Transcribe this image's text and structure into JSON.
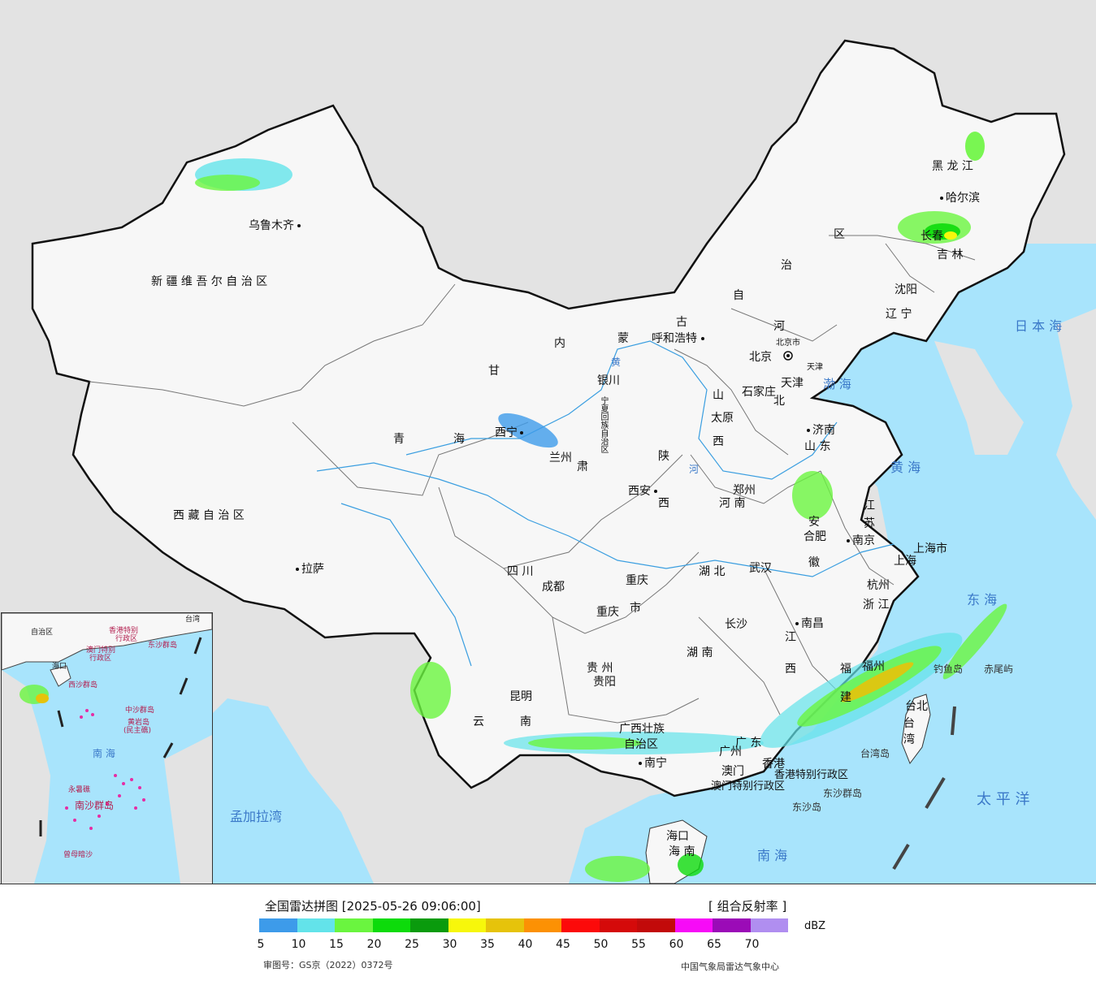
{
  "legend": {
    "title": "全国雷达拼图 [2025-05-26 09:06:00]",
    "product": "[ 组合反射率 ]",
    "unit": "dBZ",
    "ticks": [
      "5",
      "10",
      "15",
      "20",
      "25",
      "30",
      "35",
      "40",
      "45",
      "50",
      "55",
      "60",
      "65",
      "70"
    ],
    "colors": [
      "#3d9bea",
      "#63e3ea",
      "#6af53f",
      "#0ddb0b",
      "#0a9b0d",
      "#f7f70b",
      "#e6c30b",
      "#fc9104",
      "#fc0a0a",
      "#d50a0a",
      "#c20a0a",
      "#f70bf7",
      "#9b0bb7",
      "#b08ef0"
    ]
  },
  "footer": {
    "approval": "审图号：GS京（2022）0372号",
    "agency": "中国气象局雷达气象中心"
  },
  "regions": {
    "xinjiang": "新 疆 维 吾 尔 自 治 区",
    "tibet": "西 藏 自 治 区",
    "qinghai_1": "青",
    "qinghai_2": "海",
    "gansu": "甘",
    "gansu_2": "肃",
    "neimenggu_1": "内",
    "neimenggu_2": "蒙",
    "neimenggu_3": "古",
    "neimenggu_4": "自",
    "neimenggu_5": "治",
    "neimenggu_6": "区",
    "heilongjiang": "黑 龙 江",
    "jilin": "吉 林",
    "liaoning": "辽 宁",
    "hebei_1": "河",
    "hebei_2": "北",
    "shanxi_1": "山",
    "shanxi_2": "西",
    "shandong": "山 东",
    "henan": "河 南",
    "shaanxi_1": "陕",
    "shaanxi_2": "西",
    "ningxia": "宁夏回族自治区",
    "sichuan": "四  川",
    "chongqing_1": "重庆",
    "chongqing_2": "市",
    "hubei": "湖  北",
    "hunan": "湖  南",
    "anhui_1": "安",
    "anhui_2": "徽",
    "jiangsu_1": "江",
    "jiangsu_2": "苏",
    "shanghai": "上海市",
    "zhejiang": "浙 江",
    "jiangxi_1": "江",
    "jiangxi_2": "西",
    "fujian_1": "福",
    "fujian_2": "建",
    "guizhou": "贵 州",
    "yunnan_1": "云",
    "yunnan_2": "南",
    "guangxi_1": "广西壮族",
    "guangxi_2": "自治区",
    "guangdong": "广 东",
    "hainan": "海 南",
    "taiwan_1": "台",
    "taiwan_2": "湾",
    "hk": "香港特别行政区",
    "macau": "澳门特别行政区",
    "beijing": "北京市",
    "tianjin": "天津"
  },
  "cities": {
    "urumqi": "乌鲁木齐",
    "lhasa": "拉萨",
    "xining": "西宁",
    "lanzhou": "兰州",
    "yinchuan": "银川",
    "hohhot": "呼和浩特",
    "beijing": "北京",
    "tianjin": "天津",
    "shijiazhuang": "石家庄",
    "taiyuan": "太原",
    "jinan": "济南",
    "zhengzhou": "郑州",
    "xian": "西安",
    "chengdu": "成都",
    "chongqing": "重庆",
    "wuhan": "武汉",
    "hefei": "合肥",
    "nanjing": "南京",
    "shanghai": "上海",
    "hangzhou": "杭州",
    "nanchang": "南昌",
    "changsha": "长沙",
    "fuzhou": "福州",
    "guiyang": "贵阳",
    "kunming": "昆明",
    "nanning": "南宁",
    "guangzhou": "广州",
    "macau": "澳门",
    "hongkong": "香港",
    "haikou": "海口",
    "taipei": "台北",
    "harbin": "哈尔滨",
    "changchun": "长春",
    "shenyang": "沈阳"
  },
  "features": {
    "yellow_river": "黄",
    "yellow_river_2": "河",
    "bohai": "渤 海",
    "yellow_sea": "黄  海",
    "east_sea": "东  海",
    "south_sea": "南  海",
    "japan_sea": "日 本 海",
    "pacific": "太  平  洋",
    "bengal": "孟加拉湾",
    "diaoyu": "钓鱼岛",
    "chiwei": "赤尾屿",
    "taiwan_island": "台湾岛",
    "dongsha_islands": "东沙群岛",
    "dongsha_island": "东沙岛"
  },
  "inset": {
    "labels": [
      "自治区",
      "澳门特别",
      "行政区",
      "香港特别",
      "行政区",
      "东沙群岛",
      "海口",
      "西沙群岛",
      "中沙群岛",
      "黄岩岛",
      "(民主礁)",
      "永暑礁",
      "南沙群岛",
      "曾母暗沙",
      "台湾"
    ],
    "sea": "南  海"
  }
}
